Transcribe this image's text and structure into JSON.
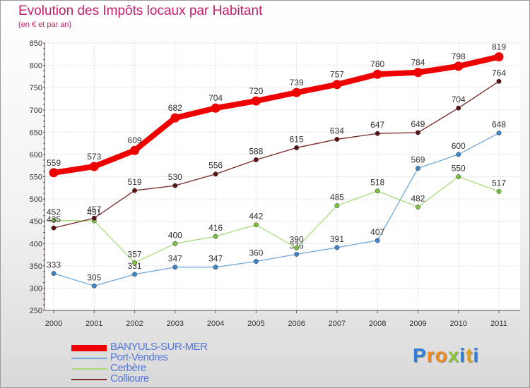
{
  "title": "Evolution des Impôts locaux par Habitant",
  "subtitle": "(en € et par an)",
  "logo": {
    "text": "Proxiti",
    "letters": [
      "P",
      "r",
      "o",
      "x",
      "i",
      "t",
      "i"
    ],
    "colors": [
      "#2f7fd8",
      "#f08a1c",
      "#f08a1c",
      "#8cc63f",
      "#2f7fd8",
      "#e0a020",
      "#2f7fd8"
    ]
  },
  "chart_data": {
    "type": "line",
    "x": [
      "2000",
      "2001",
      "2002",
      "2003",
      "2004",
      "2005",
      "2006",
      "2007",
      "2008",
      "2009",
      "2010",
      "2011"
    ],
    "ylim": [
      250,
      850
    ],
    "yticks": [
      "250",
      "300",
      "350",
      "400",
      "450",
      "500",
      "550",
      "600",
      "650",
      "700",
      "750",
      "800",
      "850"
    ],
    "grid": true,
    "legend_position": "bottom-left",
    "series": [
      {
        "name": "Port-Vendres",
        "color": "#6fa8dc",
        "marker": "#3d85c6",
        "width": 1.3,
        "values": [
          333,
          305,
          331,
          347,
          347,
          360,
          376,
          391,
          407,
          569,
          600,
          648
        ]
      },
      {
        "name": "Cerbère",
        "color": "#a9dd7a",
        "marker": "#7cc043",
        "width": 1.3,
        "values": [
          452,
          451,
          357,
          400,
          416,
          442,
          390,
          485,
          518,
          482,
          550,
          517
        ]
      },
      {
        "name": "Collioure",
        "color": "#7a2828",
        "marker": "#5c1212",
        "width": 1.3,
        "values": [
          435,
          457,
          519,
          530,
          556,
          588,
          615,
          634,
          647,
          649,
          704,
          764
        ]
      },
      {
        "name": "BANYULS-SUR-MER",
        "color": "#ee0000",
        "marker": "#ee0000",
        "width": 8,
        "values": [
          559,
          573,
          609,
          682,
          704,
          720,
          739,
          757,
          780,
          784,
          798,
          819
        ]
      }
    ],
    "legend_order": [
      "BANYULS-SUR-MER",
      "Port-Vendres",
      "Cerbère",
      "Collioure"
    ]
  }
}
